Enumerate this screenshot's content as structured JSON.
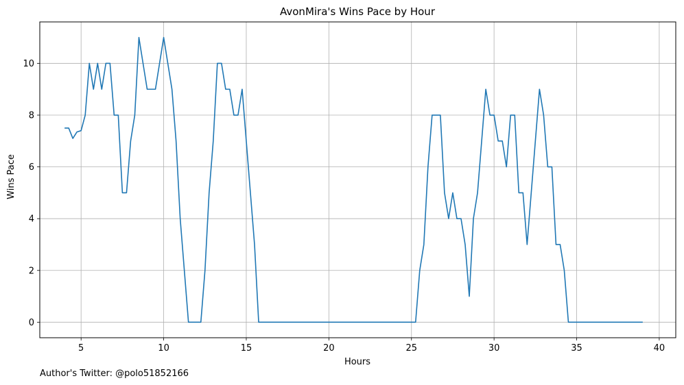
{
  "chart_data": {
    "type": "line",
    "title": "AvonMira's Wins Pace by Hour",
    "xlabel": "Hours",
    "ylabel": "Wins Pace",
    "xlim": [
      2.5,
      41.0
    ],
    "ylim": [
      -0.6,
      11.6
    ],
    "xticks": [
      5,
      10,
      15,
      20,
      25,
      30,
      35,
      40
    ],
    "yticks": [
      0,
      2,
      4,
      6,
      8,
      10
    ],
    "grid": true,
    "series": [
      {
        "color": "#1f77b4",
        "x": [
          4.0,
          4.25,
          4.5,
          4.75,
          5.0,
          5.25,
          5.5,
          5.75,
          6.0,
          6.25,
          6.5,
          6.75,
          7.0,
          7.25,
          7.5,
          7.75,
          8.0,
          8.25,
          8.5,
          8.75,
          9.0,
          9.25,
          9.5,
          9.75,
          10.0,
          10.25,
          10.5,
          10.75,
          11.0,
          11.25,
          11.5,
          11.75,
          12.0,
          12.25,
          12.5,
          12.75,
          13.0,
          13.25,
          13.5,
          13.75,
          14.0,
          14.25,
          14.5,
          14.75,
          15.0,
          15.25,
          15.5,
          15.75,
          16.0,
          16.25,
          20.0,
          25.0,
          25.25,
          25.5,
          25.75,
          26.0,
          26.25,
          26.5,
          26.75,
          27.0,
          27.25,
          27.5,
          27.75,
          28.0,
          28.25,
          28.5,
          28.75,
          29.0,
          29.25,
          29.5,
          29.75,
          30.0,
          30.25,
          30.5,
          30.75,
          31.0,
          31.25,
          31.5,
          31.75,
          32.0,
          32.25,
          32.5,
          32.75,
          33.0,
          33.25,
          33.5,
          33.75,
          34.0,
          34.25,
          34.5,
          34.75,
          39.0
        ],
        "y": [
          7.5,
          7.5,
          7.1,
          7.35,
          7.4,
          8.0,
          10.0,
          9.0,
          10.0,
          9.0,
          10.0,
          10.0,
          8.0,
          8.0,
          5.0,
          5.0,
          7.0,
          8.0,
          11.0,
          10.0,
          9.0,
          9.0,
          9.0,
          10.0,
          11.0,
          10.0,
          9.0,
          7.0,
          4.0,
          2.0,
          0.0,
          0.0,
          0.0,
          0.0,
          2.0,
          5.0,
          7.0,
          10.0,
          10.0,
          9.0,
          9.0,
          8.0,
          8.0,
          9.0,
          7.0,
          5.0,
          3.0,
          0.0,
          0.0,
          0.0,
          0.0,
          0.0,
          0.0,
          2.0,
          3.0,
          6.0,
          8.0,
          8.0,
          8.0,
          5.0,
          4.0,
          5.0,
          4.0,
          4.0,
          3.0,
          1.0,
          4.0,
          5.0,
          7.0,
          9.0,
          8.0,
          8.0,
          7.0,
          7.0,
          6.0,
          8.0,
          8.0,
          5.0,
          5.0,
          3.0,
          5.0,
          7.0,
          9.0,
          8.0,
          6.0,
          6.0,
          3.0,
          3.0,
          2.0,
          0.0,
          0.0,
          0.0
        ]
      }
    ]
  },
  "footer": {
    "credit": "Author's Twitter: @polo51852166"
  }
}
